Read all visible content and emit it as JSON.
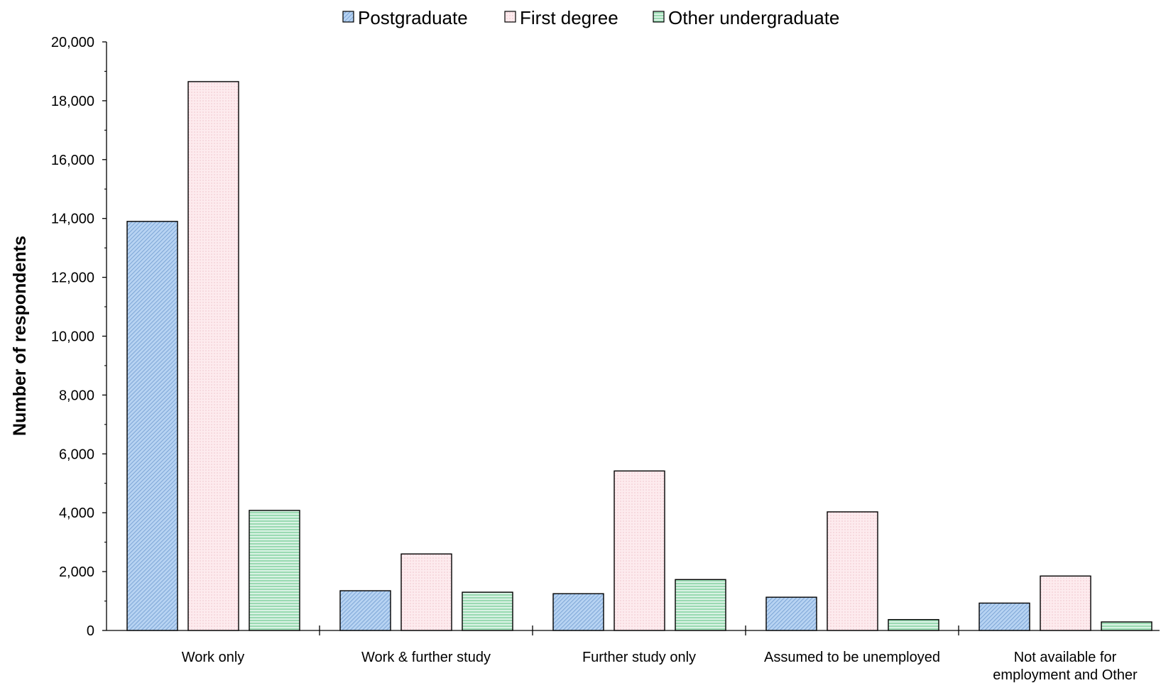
{
  "chart_data": {
    "type": "bar",
    "categories": [
      [
        "Work only"
      ],
      [
        "Work & further  study"
      ],
      [
        "Further  study only"
      ],
      [
        "Assumed to be  unemployed"
      ],
      [
        "Not available  for",
        "employment and Other"
      ]
    ],
    "series": [
      {
        "name": "Postgraduate",
        "values": [
          13900,
          1350,
          1250,
          1130,
          930
        ],
        "color": "#b7d3f2",
        "hatch": "#6f9bd0"
      },
      {
        "name": "First degree",
        "values": [
          18650,
          2600,
          5420,
          4030,
          1850
        ],
        "color": "#fdebee",
        "hatch": "#f0c5cc"
      },
      {
        "name": "Other undergraduate",
        "values": [
          4080,
          1300,
          1730,
          370,
          290
        ],
        "color": "#d9f2e4",
        "hatch": "#7fcf9d"
      }
    ],
    "ylabel": "Number of respondents",
    "xlabel": "",
    "ylim": [
      0,
      20000
    ],
    "ytick_labels": [
      "0",
      "2,000",
      "4,000",
      "6,000",
      "8,000",
      "10,000",
      "12,000",
      "14,000",
      "16,000",
      "18,000",
      "20,000"
    ],
    "grid": false,
    "legend": "top"
  }
}
